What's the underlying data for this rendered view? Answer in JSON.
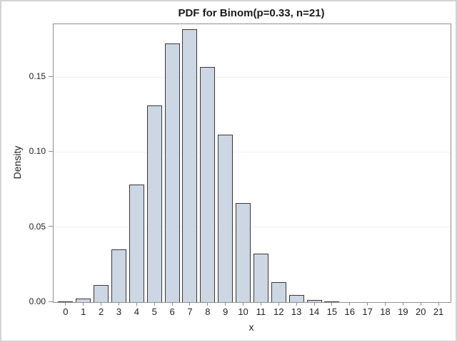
{
  "window": {
    "background_color": "#ffffff",
    "border_color": "#d3d3d3"
  },
  "chart_data": {
    "type": "bar",
    "title": "PDF for Binom(p=0.33, n=21)",
    "xlabel": "x",
    "ylabel": "Density",
    "categories": [
      "0",
      "1",
      "2",
      "3",
      "4",
      "5",
      "6",
      "7",
      "8",
      "9",
      "10",
      "11",
      "12",
      "13",
      "14",
      "15",
      "16",
      "17",
      "18",
      "19",
      "20",
      "21"
    ],
    "values": [
      0.000222,
      0.002299,
      0.011324,
      0.035325,
      0.078293,
      0.131112,
      0.172208,
      0.181755,
      0.156662,
      0.111456,
      0.065876,
      0.032446,
      0.013317,
      0.004541,
      0.001278,
      0.000294,
      5.4e-05,
      8e-06,
      1e-06,
      1e-07,
      0,
      0
    ],
    "ylim": [
      0,
      0.1852
    ],
    "yticks": [
      0,
      0.05,
      0.1,
      0.15
    ],
    "ytick_labels": [
      "0.00",
      "0.05",
      "0.10",
      "0.15"
    ],
    "grid": "horizontal-only",
    "legend": "none",
    "colors": {
      "bar_fill": "#cdd6e3",
      "bar_outline": "#383838",
      "frame": "#8f8f8f",
      "gridline": "#f0f0f0",
      "text": "#222222",
      "title_text": "#1a1a1a"
    }
  }
}
